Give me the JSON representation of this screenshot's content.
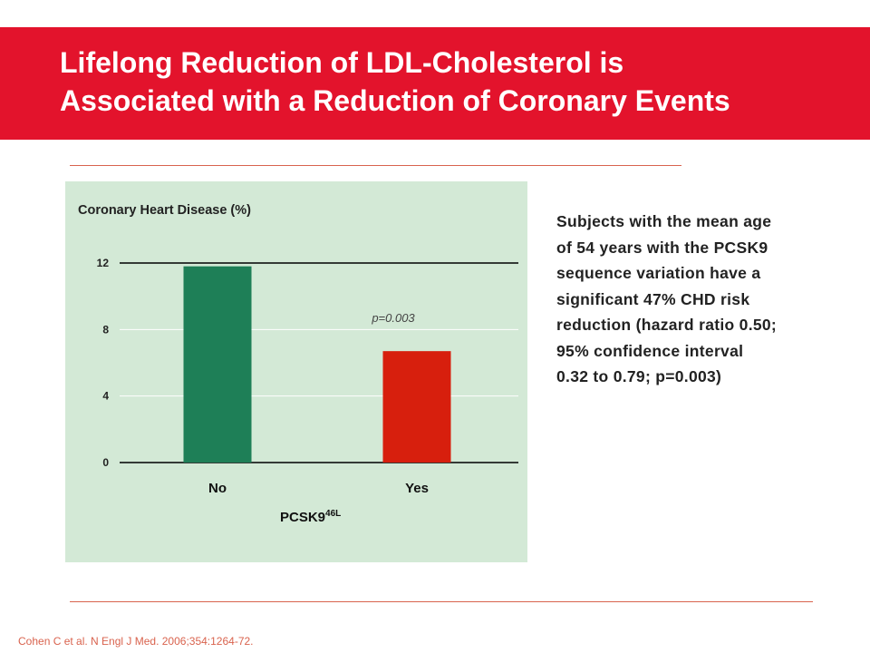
{
  "slide": {
    "title_lines": [
      "Lifelong Reduction of LDL-Cholesterol is",
      "Associated with a Reduction of Coronary Events"
    ],
    "description_lines": [
      "Subjects with the mean age",
      "of 54 years with the PCSK9",
      "sequence variation have a",
      "significant 47% CHD risk",
      "reduction (hazard ratio 0.50;",
      "95% confidence interval",
      "0.32 to 0.79; p=0.003)"
    ],
    "citation": "Cohen C et al. N Engl J Med. 2006;354:1264-72."
  },
  "colors": {
    "title_bar": "#e3132c",
    "panel_bg": "#d3e9d6",
    "bar_no": "#1e7f57",
    "bar_yes": "#d71f0d",
    "rule": "#d9634e"
  },
  "chart_data": {
    "type": "bar",
    "title": "Coronary Heart Disease (%)",
    "categories": [
      "No",
      "Yes"
    ],
    "values": [
      11.8,
      6.7
    ],
    "bar_colors": [
      "#1e7f57",
      "#d71f0d"
    ],
    "xlabel": "PCSK9",
    "xlabel_superscript": "46L",
    "ylabel": "",
    "ylim": [
      0,
      12
    ],
    "yticks": [
      0,
      4,
      8,
      12
    ],
    "grid": true,
    "annotation": "p=0.003"
  }
}
